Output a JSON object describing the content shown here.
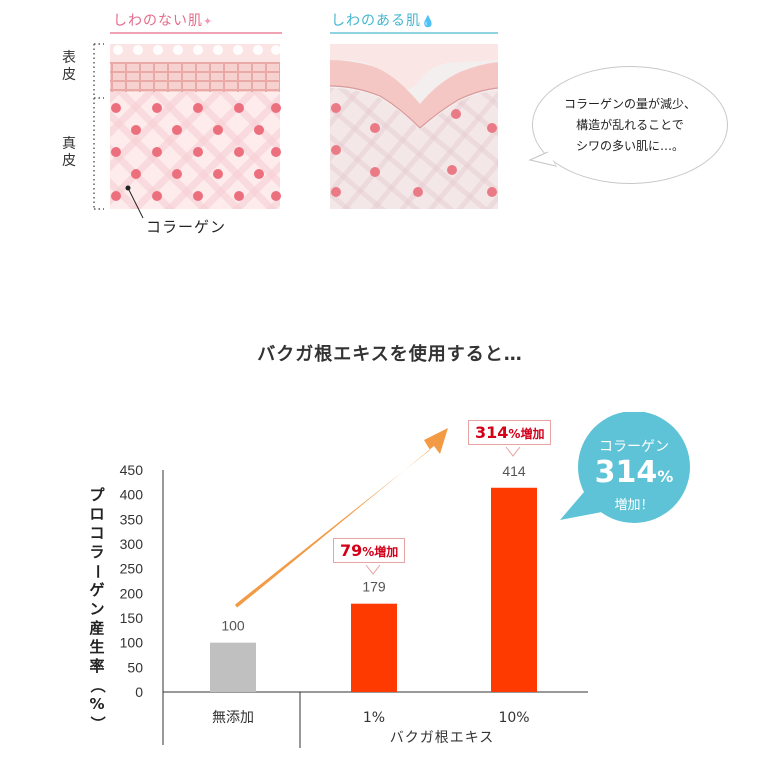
{
  "skin": {
    "no_wrinkle_title": "しわのない肌",
    "wrinkle_title": "しわのある肌",
    "epidermis_label": "表皮",
    "dermis_label": "真皮",
    "collagen_label": "コラーゲン",
    "note_lines": [
      "コラーゲンの量が減少、",
      "構造が乱れることで",
      "シワの多い肌に…。"
    ]
  },
  "headline": "バクガ根エキスを使用すると…",
  "badge": {
    "line1": "コラーゲン",
    "value": "314",
    "unit": "%",
    "line3": "増加！"
  },
  "callouts": [
    {
      "value": "79",
      "unit": "%",
      "suffix": "増加"
    },
    {
      "value": "314",
      "unit": "%",
      "suffix": "増加"
    }
  ],
  "chart_data": {
    "type": "bar",
    "ylabel": "プロコラーゲン産生率（%）",
    "ylim": [
      0,
      450
    ],
    "ticks": [
      0,
      50,
      100,
      150,
      200,
      250,
      300,
      350,
      400,
      450
    ],
    "categories": [
      "無添加",
      "1%",
      "10%"
    ],
    "values": [
      100,
      179,
      414
    ],
    "group_label": "バクガ根エキス",
    "colors": {
      "control": "#c0c0c0",
      "treated": "#ff3a00",
      "arrow": "#f39a45",
      "badge": "#5ec3d6"
    }
  }
}
